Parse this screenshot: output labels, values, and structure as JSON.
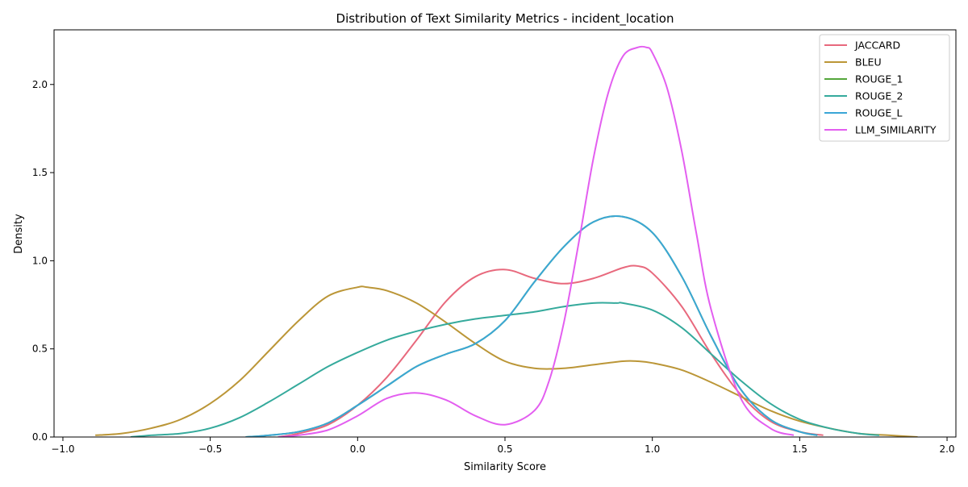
{
  "chart_data": {
    "type": "line",
    "title": "Distribution of Text Similarity Metrics - incident_location",
    "xlabel": "Similarity Score",
    "ylabel": "Density",
    "xlim": [
      -1.03,
      2.03
    ],
    "ylim": [
      0,
      2.31
    ],
    "xticks": [
      -1.0,
      -0.5,
      0.0,
      0.5,
      1.0,
      1.5,
      2.0
    ],
    "xtick_labels": [
      "−1.0",
      "−0.5",
      "0.0",
      "0.5",
      "1.0",
      "1.5",
      "2.0"
    ],
    "yticks": [
      0.0,
      0.5,
      1.0,
      1.5,
      2.0
    ],
    "ytick_labels": [
      "0.0",
      "0.5",
      "1.0",
      "1.5",
      "2.0"
    ],
    "grid": false,
    "legend_position": "top-right",
    "series": [
      {
        "name": "JACCARD",
        "color": "#e8697d",
        "x": [
          -0.27,
          -0.2,
          -0.1,
          0.0,
          0.1,
          0.2,
          0.3,
          0.4,
          0.5,
          0.6,
          0.7,
          0.8,
          0.9,
          0.95,
          1.0,
          1.1,
          1.2,
          1.3,
          1.4,
          1.5,
          1.58
        ],
        "y": [
          0.0,
          0.02,
          0.07,
          0.18,
          0.34,
          0.55,
          0.77,
          0.91,
          0.95,
          0.9,
          0.87,
          0.9,
          0.96,
          0.97,
          0.93,
          0.74,
          0.47,
          0.24,
          0.09,
          0.03,
          0.01
        ]
      },
      {
        "name": "BLEU",
        "color": "#bb9637",
        "x": [
          -0.89,
          -0.8,
          -0.7,
          -0.6,
          -0.5,
          -0.4,
          -0.3,
          -0.2,
          -0.1,
          0.0,
          0.03,
          0.1,
          0.2,
          0.3,
          0.4,
          0.5,
          0.6,
          0.7,
          0.8,
          0.9,
          0.95,
          1.0,
          1.1,
          1.2,
          1.3,
          1.4,
          1.5,
          1.6,
          1.7,
          1.8,
          1.9
        ],
        "y": [
          0.01,
          0.02,
          0.05,
          0.1,
          0.19,
          0.32,
          0.49,
          0.66,
          0.8,
          0.85,
          0.85,
          0.83,
          0.76,
          0.65,
          0.53,
          0.43,
          0.39,
          0.39,
          0.41,
          0.43,
          0.43,
          0.42,
          0.38,
          0.31,
          0.23,
          0.15,
          0.09,
          0.05,
          0.02,
          0.01,
          0.0
        ]
      },
      {
        "name": "ROUGE_1",
        "color": "#54a63b",
        "x": [
          -0.38,
          -0.3,
          -0.2,
          -0.1,
          0.0,
          0.1,
          0.2,
          0.3,
          0.4,
          0.5,
          0.6,
          0.7,
          0.8,
          0.9,
          1.0,
          1.1,
          1.2,
          1.3,
          1.4,
          1.5,
          1.56
        ],
        "y": [
          0.0,
          0.01,
          0.03,
          0.08,
          0.18,
          0.29,
          0.4,
          0.47,
          0.53,
          0.66,
          0.88,
          1.08,
          1.22,
          1.25,
          1.16,
          0.91,
          0.57,
          0.27,
          0.1,
          0.03,
          0.01
        ]
      },
      {
        "name": "ROUGE_2",
        "color": "#35aa9c",
        "x": [
          -0.77,
          -0.7,
          -0.6,
          -0.5,
          -0.4,
          -0.3,
          -0.2,
          -0.1,
          0.0,
          0.1,
          0.2,
          0.3,
          0.4,
          0.5,
          0.6,
          0.7,
          0.8,
          0.88,
          0.9,
          1.0,
          1.1,
          1.2,
          1.3,
          1.4,
          1.5,
          1.6,
          1.7,
          1.77
        ],
        "y": [
          0.0,
          0.01,
          0.02,
          0.05,
          0.11,
          0.2,
          0.3,
          0.4,
          0.48,
          0.55,
          0.6,
          0.64,
          0.67,
          0.69,
          0.71,
          0.74,
          0.76,
          0.76,
          0.76,
          0.72,
          0.62,
          0.47,
          0.32,
          0.19,
          0.1,
          0.05,
          0.02,
          0.01
        ]
      },
      {
        "name": "ROUGE_L",
        "color": "#3aa6d6",
        "x": [
          -0.38,
          -0.3,
          -0.2,
          -0.1,
          0.0,
          0.1,
          0.2,
          0.3,
          0.4,
          0.5,
          0.6,
          0.7,
          0.8,
          0.9,
          1.0,
          1.1,
          1.2,
          1.3,
          1.4,
          1.5,
          1.56
        ],
        "y": [
          0.0,
          0.01,
          0.03,
          0.08,
          0.18,
          0.29,
          0.4,
          0.47,
          0.53,
          0.66,
          0.88,
          1.08,
          1.22,
          1.25,
          1.16,
          0.91,
          0.57,
          0.27,
          0.1,
          0.03,
          0.01
        ]
      },
      {
        "name": "LLM_SIMILARITY",
        "color": "#e35ef0",
        "x": [
          -0.27,
          -0.2,
          -0.1,
          0.0,
          0.1,
          0.2,
          0.3,
          0.4,
          0.5,
          0.6,
          0.65,
          0.7,
          0.75,
          0.8,
          0.85,
          0.9,
          0.95,
          0.98,
          1.0,
          1.05,
          1.1,
          1.15,
          1.2,
          1.3,
          1.4,
          1.48
        ],
        "y": [
          0.0,
          0.01,
          0.04,
          0.12,
          0.22,
          0.25,
          0.21,
          0.12,
          0.07,
          0.15,
          0.32,
          0.65,
          1.1,
          1.58,
          1.95,
          2.16,
          2.21,
          2.21,
          2.18,
          1.98,
          1.62,
          1.15,
          0.72,
          0.22,
          0.05,
          0.01
        ]
      }
    ]
  }
}
